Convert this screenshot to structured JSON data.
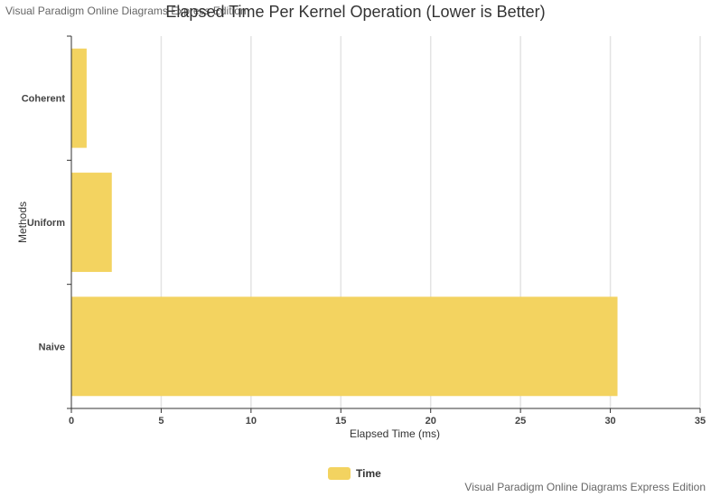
{
  "watermark": "Visual Paradigm Online Diagrams Express Edition",
  "chart_data": {
    "type": "bar",
    "orientation": "horizontal",
    "title": "Elapsed Time Per Kernel Operation (Lower is Better)",
    "xlabel": "Elapsed Time (ms)",
    "ylabel": "Methods",
    "categories": [
      "Coherent",
      "Uniform",
      "Naive"
    ],
    "series": [
      {
        "name": "Time",
        "values": [
          0.85,
          2.25,
          30.4
        ],
        "color": "#f3d360"
      }
    ],
    "xlim": [
      0,
      35
    ],
    "xticks": [
      0,
      5,
      10,
      15,
      20,
      25,
      30,
      35
    ],
    "grid": true,
    "legend_position": "bottom-center"
  }
}
